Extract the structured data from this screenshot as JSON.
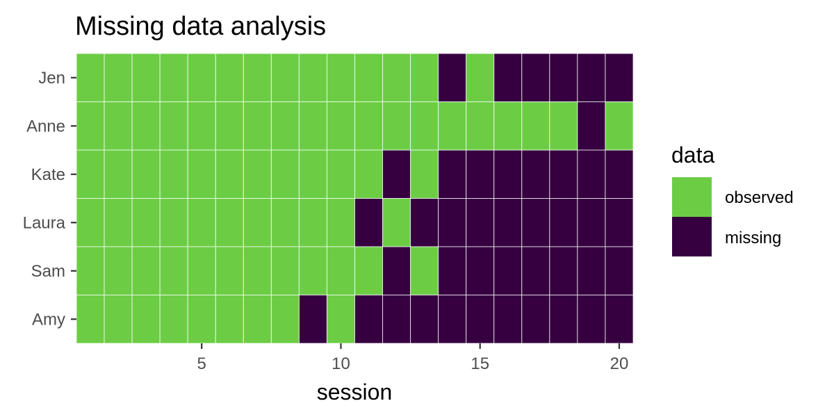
{
  "chart_data": {
    "type": "heatmap",
    "title": "Missing data analysis",
    "xlabel": "session",
    "ylabel": "",
    "xlim": [
      0.5,
      20.5
    ],
    "x_ticks": [
      5,
      10,
      15,
      20
    ],
    "x": [
      1,
      2,
      3,
      4,
      5,
      6,
      7,
      8,
      9,
      10,
      11,
      12,
      13,
      14,
      15,
      16,
      17,
      18,
      19,
      20
    ],
    "categories": [
      "Jen",
      "Anne",
      "Kate",
      "Laura",
      "Sam",
      "Amy"
    ],
    "grid": true,
    "legend": {
      "title": "data",
      "placement": "right",
      "entries": [
        {
          "key": "observed",
          "label": "observed",
          "color": "#6ccd45"
        },
        {
          "key": "missing",
          "label": "missing",
          "color": "#360040"
        }
      ]
    },
    "rows": [
      {
        "name": "Jen",
        "values": [
          "observed",
          "observed",
          "observed",
          "observed",
          "observed",
          "observed",
          "observed",
          "observed",
          "observed",
          "observed",
          "observed",
          "observed",
          "observed",
          "missing",
          "observed",
          "missing",
          "missing",
          "missing",
          "missing",
          "missing"
        ]
      },
      {
        "name": "Anne",
        "values": [
          "observed",
          "observed",
          "observed",
          "observed",
          "observed",
          "observed",
          "observed",
          "observed",
          "observed",
          "observed",
          "observed",
          "observed",
          "observed",
          "observed",
          "observed",
          "observed",
          "observed",
          "observed",
          "missing",
          "observed"
        ]
      },
      {
        "name": "Kate",
        "values": [
          "observed",
          "observed",
          "observed",
          "observed",
          "observed",
          "observed",
          "observed",
          "observed",
          "observed",
          "observed",
          "observed",
          "missing",
          "observed",
          "missing",
          "missing",
          "missing",
          "missing",
          "missing",
          "missing",
          "missing"
        ]
      },
      {
        "name": "Laura",
        "values": [
          "observed",
          "observed",
          "observed",
          "observed",
          "observed",
          "observed",
          "observed",
          "observed",
          "observed",
          "observed",
          "missing",
          "observed",
          "missing",
          "missing",
          "missing",
          "missing",
          "missing",
          "missing",
          "missing",
          "missing"
        ]
      },
      {
        "name": "Sam",
        "values": [
          "observed",
          "observed",
          "observed",
          "observed",
          "observed",
          "observed",
          "observed",
          "observed",
          "observed",
          "observed",
          "observed",
          "missing",
          "observed",
          "missing",
          "missing",
          "missing",
          "missing",
          "missing",
          "missing",
          "missing"
        ]
      },
      {
        "name": "Amy",
        "values": [
          "observed",
          "observed",
          "observed",
          "observed",
          "observed",
          "observed",
          "observed",
          "observed",
          "missing",
          "observed",
          "missing",
          "missing",
          "missing",
          "missing",
          "missing",
          "missing",
          "missing",
          "missing",
          "missing",
          "missing"
        ]
      }
    ]
  }
}
